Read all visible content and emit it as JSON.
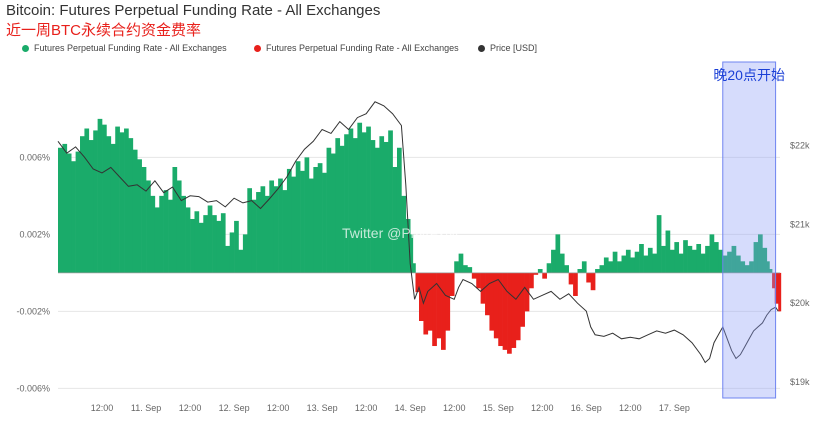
{
  "header": {
    "title": "Bitcoin: Futures Perpetual Funding Rate - All Exchanges",
    "subtitle": "近一周BTC永续合约资金费率"
  },
  "legend": [
    {
      "label": "Futures Perpetual Funding Rate - All Exchanges",
      "color": "#1aab6a"
    },
    {
      "label": "Futures Perpetual Funding Rate - All Exchanges",
      "color": "#e8201b"
    },
    {
      "label": "Price [USD]",
      "color": "#333333"
    }
  ],
  "annotation": {
    "label": "晚20点开始",
    "color": "#1a3fd6",
    "x_start": 7.55,
    "x_end": 8.15
  },
  "watermark": "Twitter @PhyrexNi",
  "chart_data": {
    "type": "area",
    "x_unit": "time (days from 10 Sep 00:00)",
    "xlim": [
      0,
      8.2
    ],
    "x_ticks": [
      {
        "x": 0.5,
        "label": "12:00"
      },
      {
        "x": 1.0,
        "label": "11. Sep"
      },
      {
        "x": 1.5,
        "label": "12:00"
      },
      {
        "x": 2.0,
        "label": "12. Sep"
      },
      {
        "x": 2.5,
        "label": "12:00"
      },
      {
        "x": 3.0,
        "label": "13. Sep"
      },
      {
        "x": 3.5,
        "label": "12:00"
      },
      {
        "x": 4.0,
        "label": "14. Sep"
      },
      {
        "x": 4.5,
        "label": "12:00"
      },
      {
        "x": 5.0,
        "label": "15. Sep"
      },
      {
        "x": 5.5,
        "label": "12:00"
      },
      {
        "x": 6.0,
        "label": "16. Sep"
      },
      {
        "x": 6.5,
        "label": "12:00"
      },
      {
        "x": 7.0,
        "label": "17. Sep"
      }
    ],
    "y_left": {
      "unit": "%",
      "lim": [
        -0.0065,
        0.0095
      ],
      "ticks": [
        {
          "v": 0.006,
          "label": "0.006%"
        },
        {
          "v": 0.002,
          "label": "0.002%"
        },
        {
          "v": -0.002,
          "label": "-0.002%"
        },
        {
          "v": -0.006,
          "label": "-0.006%"
        }
      ]
    },
    "y_right": {
      "unit": "USD",
      "lim": [
        18800,
        22700
      ],
      "ticks": [
        {
          "v": 22000,
          "label": "$22k"
        },
        {
          "v": 21000,
          "label": "$21k"
        },
        {
          "v": 20000,
          "label": "$20k"
        },
        {
          "v": 19000,
          "label": "$19k"
        }
      ]
    },
    "series": [
      {
        "name": "Futures Perpetual Funding Rate - All Exchanges",
        "axis": "left",
        "positive_color": "#1aab6a",
        "negative_color": "#e8201b",
        "points": [
          [
            0.0,
            0.0065
          ],
          [
            0.05,
            0.0067
          ],
          [
            0.1,
            0.0062
          ],
          [
            0.15,
            0.0058
          ],
          [
            0.2,
            0.0063
          ],
          [
            0.25,
            0.0071
          ],
          [
            0.3,
            0.0075
          ],
          [
            0.35,
            0.0069
          ],
          [
            0.4,
            0.0074
          ],
          [
            0.45,
            0.008
          ],
          [
            0.5,
            0.0077
          ],
          [
            0.55,
            0.0071
          ],
          [
            0.6,
            0.0067
          ],
          [
            0.65,
            0.0076
          ],
          [
            0.7,
            0.0073
          ],
          [
            0.75,
            0.0075
          ],
          [
            0.8,
            0.007
          ],
          [
            0.85,
            0.0064
          ],
          [
            0.9,
            0.0059
          ],
          [
            0.95,
            0.0055
          ],
          [
            1.0,
            0.0048
          ],
          [
            1.05,
            0.004
          ],
          [
            1.1,
            0.0034
          ],
          [
            1.15,
            0.004
          ],
          [
            1.2,
            0.0043
          ],
          [
            1.25,
            0.0038
          ],
          [
            1.3,
            0.0055
          ],
          [
            1.35,
            0.0048
          ],
          [
            1.4,
            0.004
          ],
          [
            1.45,
            0.0034
          ],
          [
            1.5,
            0.0028
          ],
          [
            1.55,
            0.0032
          ],
          [
            1.6,
            0.0026
          ],
          [
            1.65,
            0.003
          ],
          [
            1.7,
            0.0035
          ],
          [
            1.75,
            0.003
          ],
          [
            1.8,
            0.0027
          ],
          [
            1.85,
            0.0031
          ],
          [
            1.9,
            0.0014
          ],
          [
            1.95,
            0.0021
          ],
          [
            2.0,
            0.0027
          ],
          [
            2.05,
            0.0012
          ],
          [
            2.1,
            0.002
          ],
          [
            2.15,
            0.0044
          ],
          [
            2.2,
            0.0038
          ],
          [
            2.25,
            0.0042
          ],
          [
            2.3,
            0.0045
          ],
          [
            2.35,
            0.004
          ],
          [
            2.4,
            0.0048
          ],
          [
            2.45,
            0.0045
          ],
          [
            2.5,
            0.0049
          ],
          [
            2.55,
            0.0043
          ],
          [
            2.6,
            0.0054
          ],
          [
            2.65,
            0.005
          ],
          [
            2.7,
            0.0058
          ],
          [
            2.75,
            0.0053
          ],
          [
            2.8,
            0.006
          ],
          [
            2.85,
            0.0049
          ],
          [
            2.9,
            0.0055
          ],
          [
            2.95,
            0.0057
          ],
          [
            3.0,
            0.0052
          ],
          [
            3.05,
            0.0065
          ],
          [
            3.1,
            0.0062
          ],
          [
            3.15,
            0.007
          ],
          [
            3.2,
            0.0066
          ],
          [
            3.25,
            0.0072
          ],
          [
            3.3,
            0.0075
          ],
          [
            3.35,
            0.007
          ],
          [
            3.4,
            0.0078
          ],
          [
            3.45,
            0.0073
          ],
          [
            3.5,
            0.0076
          ],
          [
            3.55,
            0.0069
          ],
          [
            3.6,
            0.0065
          ],
          [
            3.65,
            0.0071
          ],
          [
            3.7,
            0.0068
          ],
          [
            3.75,
            0.0074
          ],
          [
            3.8,
            0.0055
          ],
          [
            3.85,
            0.0065
          ],
          [
            3.9,
            0.004
          ],
          [
            3.95,
            0.0028
          ],
          [
            4.0,
            0.002
          ],
          [
            4.03,
            0.0005
          ],
          [
            4.06,
            -0.001
          ],
          [
            4.1,
            -0.0025
          ],
          [
            4.15,
            -0.0032
          ],
          [
            4.2,
            -0.003
          ],
          [
            4.25,
            -0.0038
          ],
          [
            4.3,
            -0.0034
          ],
          [
            4.35,
            -0.004
          ],
          [
            4.4,
            -0.003
          ],
          [
            4.45,
            -0.0012
          ],
          [
            4.5,
            0.0006
          ],
          [
            4.55,
            0.001
          ],
          [
            4.6,
            0.0004
          ],
          [
            4.65,
            0.0003
          ],
          [
            4.7,
            -0.0003
          ],
          [
            4.75,
            -0.0008
          ],
          [
            4.8,
            -0.0016
          ],
          [
            4.85,
            -0.0022
          ],
          [
            4.9,
            -0.003
          ],
          [
            4.95,
            -0.0034
          ],
          [
            5.0,
            -0.0038
          ],
          [
            5.05,
            -0.004
          ],
          [
            5.1,
            -0.0042
          ],
          [
            5.15,
            -0.0039
          ],
          [
            5.2,
            -0.0035
          ],
          [
            5.25,
            -0.0028
          ],
          [
            5.3,
            -0.002
          ],
          [
            5.35,
            -0.0008
          ],
          [
            5.4,
            -0.0001
          ],
          [
            5.45,
            0.0002
          ],
          [
            5.5,
            -0.0003
          ],
          [
            5.55,
            0.0005
          ],
          [
            5.6,
            0.0012
          ],
          [
            5.65,
            0.002
          ],
          [
            5.7,
            0.001
          ],
          [
            5.75,
            0.0004
          ],
          [
            5.8,
            -0.0006
          ],
          [
            5.85,
            -0.0012
          ],
          [
            5.9,
            0.0002
          ],
          [
            5.95,
            0.0006
          ],
          [
            6.0,
            -0.0005
          ],
          [
            6.05,
            -0.0009
          ],
          [
            6.1,
            0.0002
          ],
          [
            6.15,
            0.0004
          ],
          [
            6.2,
            0.0008
          ],
          [
            6.25,
            0.0006
          ],
          [
            6.3,
            0.0011
          ],
          [
            6.35,
            0.0006
          ],
          [
            6.4,
            0.0009
          ],
          [
            6.45,
            0.0012
          ],
          [
            6.5,
            0.0008
          ],
          [
            6.55,
            0.0011
          ],
          [
            6.6,
            0.0015
          ],
          [
            6.65,
            0.0009
          ],
          [
            6.7,
            0.0013
          ],
          [
            6.75,
            0.001
          ],
          [
            6.8,
            0.003
          ],
          [
            6.85,
            0.0014
          ],
          [
            6.9,
            0.0022
          ],
          [
            6.95,
            0.0012
          ],
          [
            7.0,
            0.0016
          ],
          [
            7.05,
            0.001
          ],
          [
            7.1,
            0.0017
          ],
          [
            7.15,
            0.0014
          ],
          [
            7.2,
            0.0012
          ],
          [
            7.25,
            0.0015
          ],
          [
            7.3,
            0.001
          ],
          [
            7.35,
            0.0014
          ],
          [
            7.4,
            0.002
          ],
          [
            7.45,
            0.0016
          ],
          [
            7.5,
            0.0012
          ],
          [
            7.55,
            0.0009
          ],
          [
            7.6,
            0.0011
          ],
          [
            7.65,
            0.0014
          ],
          [
            7.7,
            0.0009
          ],
          [
            7.75,
            0.0006
          ],
          [
            7.8,
            0.0004
          ],
          [
            7.85,
            0.0006
          ],
          [
            7.9,
            0.0016
          ],
          [
            7.95,
            0.002
          ],
          [
            8.0,
            0.0013
          ],
          [
            8.05,
            0.0006
          ],
          [
            8.08,
            0.0002
          ],
          [
            8.11,
            -0.0008
          ],
          [
            8.14,
            -0.0016
          ],
          [
            8.18,
            -0.002
          ]
        ]
      },
      {
        "name": "Price [USD]",
        "axis": "right",
        "color": "#333333",
        "points": [
          [
            0.0,
            22050
          ],
          [
            0.1,
            21900
          ],
          [
            0.2,
            21980
          ],
          [
            0.3,
            21850
          ],
          [
            0.4,
            21700
          ],
          [
            0.5,
            21650
          ],
          [
            0.6,
            21720
          ],
          [
            0.7,
            21600
          ],
          [
            0.8,
            21480
          ],
          [
            0.9,
            21500
          ],
          [
            1.0,
            21420
          ],
          [
            1.1,
            21550
          ],
          [
            1.2,
            21400
          ],
          [
            1.3,
            21470
          ],
          [
            1.4,
            21300
          ],
          [
            1.5,
            21360
          ],
          [
            1.6,
            21350
          ],
          [
            1.7,
            21280
          ],
          [
            1.8,
            21300
          ],
          [
            1.9,
            21220
          ],
          [
            2.0,
            21330
          ],
          [
            2.1,
            21270
          ],
          [
            2.2,
            21300
          ],
          [
            2.3,
            21200
          ],
          [
            2.4,
            21320
          ],
          [
            2.5,
            21450
          ],
          [
            2.6,
            21600
          ],
          [
            2.7,
            21800
          ],
          [
            2.8,
            21950
          ],
          [
            2.9,
            22050
          ],
          [
            3.0,
            22200
          ],
          [
            3.1,
            22150
          ],
          [
            3.2,
            22300
          ],
          [
            3.3,
            22200
          ],
          [
            3.4,
            22350
          ],
          [
            3.5,
            22400
          ],
          [
            3.6,
            22550
          ],
          [
            3.7,
            22500
          ],
          [
            3.8,
            22400
          ],
          [
            3.9,
            22250
          ],
          [
            3.95,
            21500
          ],
          [
            4.0,
            20500
          ],
          [
            4.05,
            20050
          ],
          [
            4.1,
            20200
          ],
          [
            4.15,
            20000
          ],
          [
            4.2,
            20150
          ],
          [
            4.3,
            20250
          ],
          [
            4.4,
            20100
          ],
          [
            4.5,
            20050
          ],
          [
            4.55,
            20200
          ],
          [
            4.6,
            20300
          ],
          [
            4.7,
            20250
          ],
          [
            4.8,
            20150
          ],
          [
            4.9,
            20250
          ],
          [
            5.0,
            20300
          ],
          [
            5.1,
            20150
          ],
          [
            5.2,
            20050
          ],
          [
            5.3,
            20200
          ],
          [
            5.4,
            20050
          ],
          [
            5.5,
            20100
          ],
          [
            5.6,
            20150
          ],
          [
            5.7,
            20050
          ],
          [
            5.8,
            20120
          ],
          [
            5.9,
            20000
          ],
          [
            6.0,
            19900
          ],
          [
            6.05,
            19700
          ],
          [
            6.1,
            19600
          ],
          [
            6.2,
            19580
          ],
          [
            6.3,
            19620
          ],
          [
            6.4,
            19550
          ],
          [
            6.5,
            19570
          ],
          [
            6.6,
            19550
          ],
          [
            6.7,
            19600
          ],
          [
            6.8,
            19650
          ],
          [
            6.9,
            19620
          ],
          [
            7.0,
            19660
          ],
          [
            7.1,
            19600
          ],
          [
            7.2,
            19500
          ],
          [
            7.3,
            19350
          ],
          [
            7.35,
            19250
          ],
          [
            7.4,
            19300
          ],
          [
            7.45,
            19500
          ],
          [
            7.5,
            19600
          ],
          [
            7.55,
            19700
          ],
          [
            7.6,
            19550
          ],
          [
            7.65,
            19400
          ],
          [
            7.7,
            19300
          ],
          [
            7.75,
            19350
          ],
          [
            7.8,
            19450
          ],
          [
            7.85,
            19550
          ],
          [
            7.9,
            19650
          ],
          [
            7.95,
            19700
          ],
          [
            8.0,
            19750
          ],
          [
            8.05,
            19850
          ],
          [
            8.1,
            19920
          ],
          [
            8.15,
            19950
          ],
          [
            8.18,
            19900
          ]
        ]
      }
    ]
  }
}
